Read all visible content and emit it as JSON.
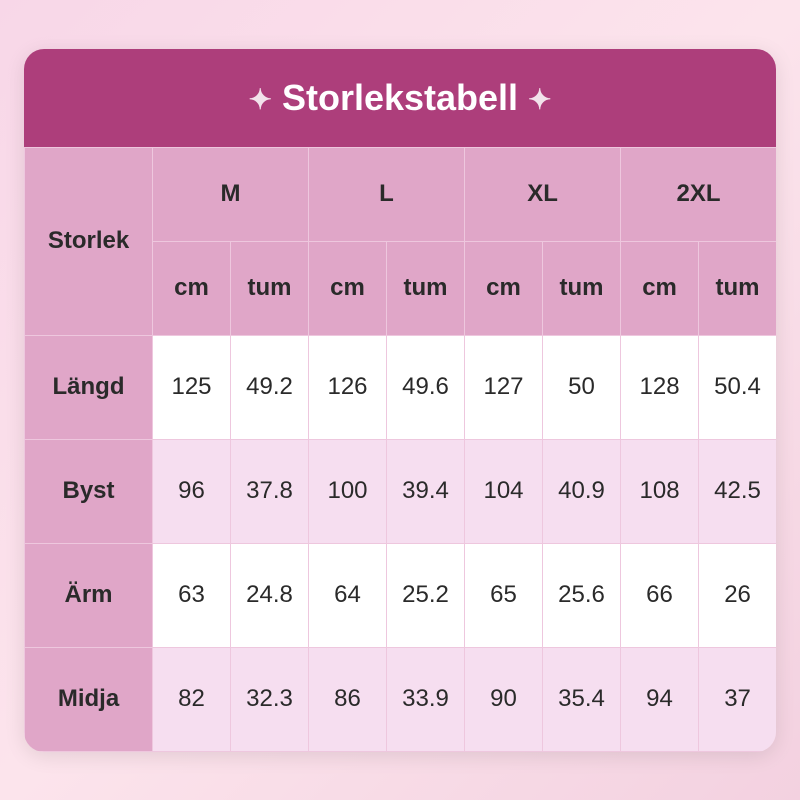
{
  "title": "Storlekstabell",
  "colors": {
    "title_bg": "#ad3e7b",
    "header_bg": "#e0a6c8",
    "row_label_bg": "#e0a6c8",
    "row_even_bg": "#ffffff",
    "row_odd_bg": "#f6def0",
    "border": "#eec7de",
    "text": "#2a2a2a",
    "title_text": "#ffffff"
  },
  "layout": {
    "header_row1_h": 94,
    "header_row2_h": 94,
    "data_row_h": 104,
    "label_col_w": 128,
    "data_col_w": 78
  },
  "corner_label": "Storlek",
  "sizes": [
    "M",
    "L",
    "XL",
    "2XL"
  ],
  "units": [
    "cm",
    "tum"
  ],
  "rows": [
    {
      "label": "Längd",
      "values": [
        "125",
        "49.2",
        "126",
        "49.6",
        "127",
        "50",
        "128",
        "50.4"
      ]
    },
    {
      "label": "Byst",
      "values": [
        "96",
        "37.8",
        "100",
        "39.4",
        "104",
        "40.9",
        "108",
        "42.5"
      ]
    },
    {
      "label": "Ärm",
      "values": [
        "63",
        "24.8",
        "64",
        "25.2",
        "65",
        "25.6",
        "66",
        "26"
      ]
    },
    {
      "label": "Midja",
      "values": [
        "82",
        "32.3",
        "86",
        "33.9",
        "90",
        "35.4",
        "94",
        "37"
      ]
    }
  ]
}
